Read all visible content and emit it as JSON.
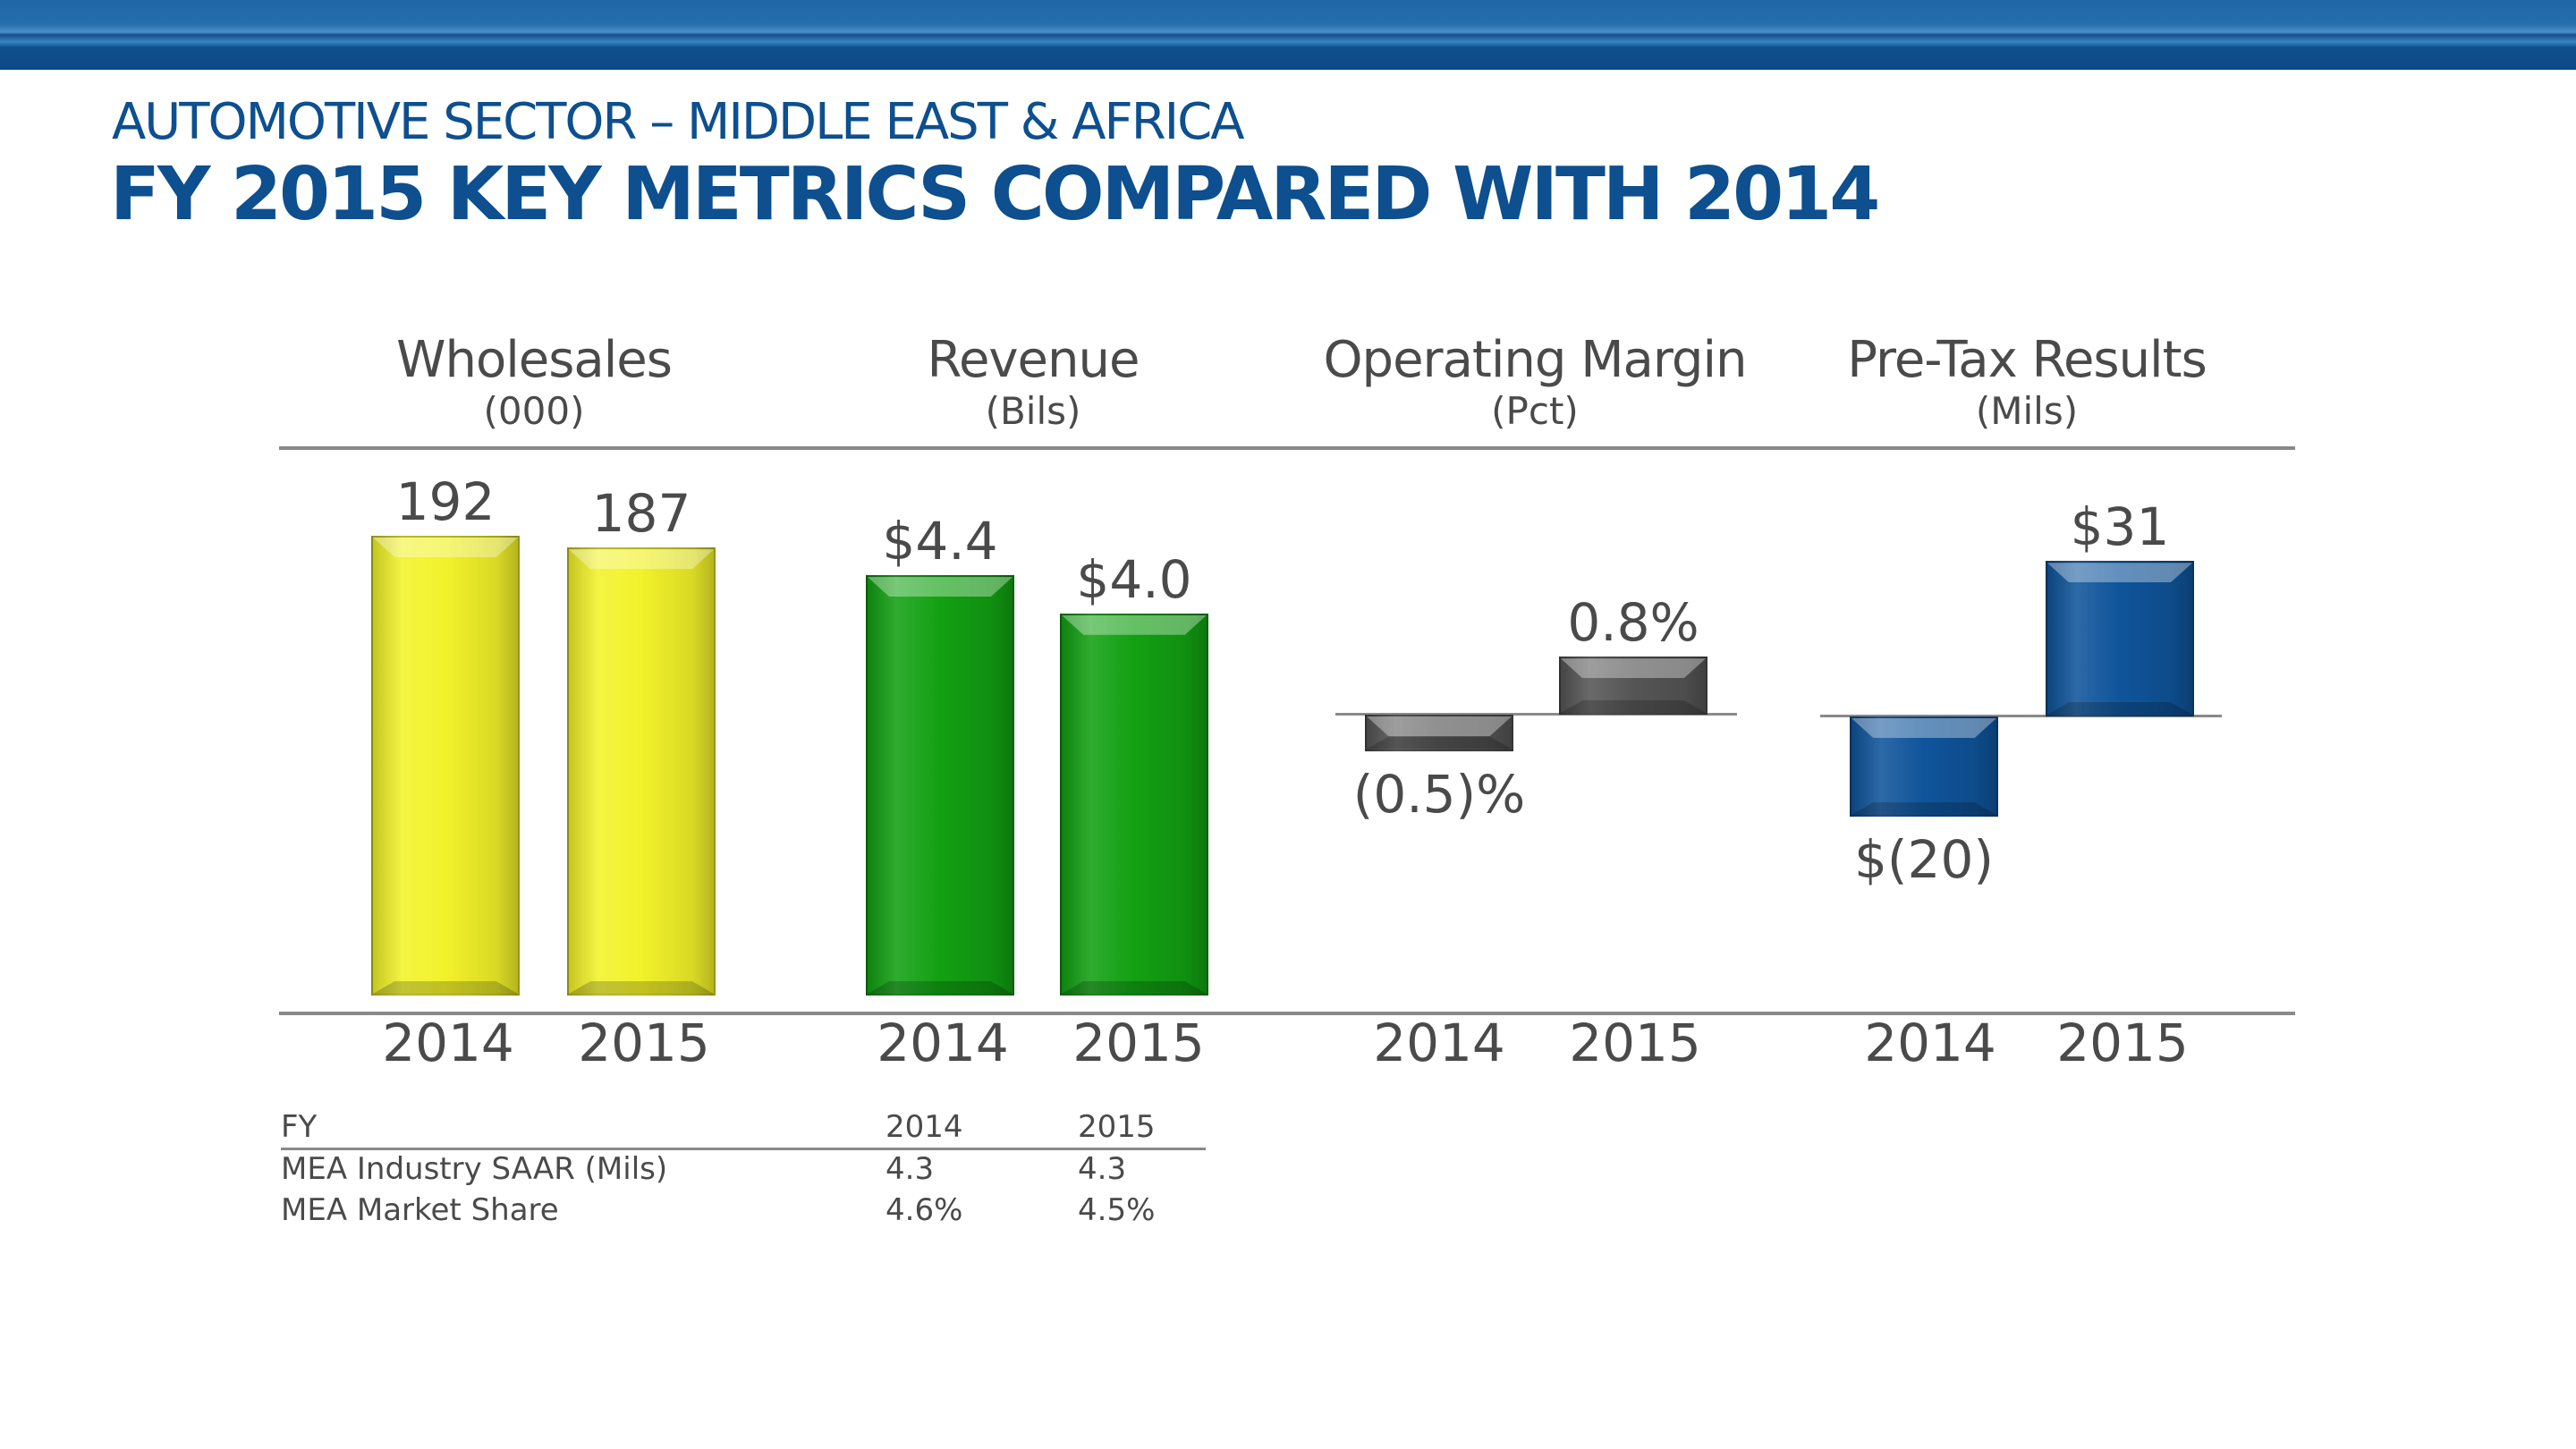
{
  "header": {
    "subtitle": "AUTOMOTIVE SECTOR – MIDDLE EAST & AFRICA",
    "title": "FY 2015 KEY METRICS COMPARED WITH 2014"
  },
  "chart_data": [
    {
      "type": "bar",
      "title": "Wholesales",
      "unit": "(000)",
      "categories": [
        "2014",
        "2015"
      ],
      "values": [
        192,
        187
      ],
      "labels": [
        "192",
        "187"
      ],
      "color": "#f2f22a"
    },
    {
      "type": "bar",
      "title": "Revenue",
      "unit": "(Bils)",
      "categories": [
        "2014",
        "2015"
      ],
      "values": [
        4.4,
        4.0
      ],
      "labels": [
        "$4.4",
        "$4.0"
      ],
      "color": "#12a012"
    },
    {
      "type": "bar",
      "title": "Operating Margin",
      "unit": "(Pct)",
      "categories": [
        "2014",
        "2015"
      ],
      "values": [
        -0.5,
        0.8
      ],
      "labels": [
        "(0.5)%",
        "0.8%"
      ],
      "color": "#555555"
    },
    {
      "type": "bar",
      "title": "Pre-Tax Results",
      "unit": "(Mils)",
      "categories": [
        "2014",
        "2015"
      ],
      "values": [
        -20,
        31
      ],
      "labels": [
        "$(20)",
        "$31"
      ],
      "color": "#0f549a"
    }
  ],
  "table": {
    "header": [
      "FY",
      "2014",
      "2015"
    ],
    "rows": [
      [
        "MEA Industry SAAR (Mils)",
        "4.3",
        "4.3"
      ],
      [
        "MEA Market Share",
        "4.6%",
        "4.5%"
      ]
    ]
  }
}
